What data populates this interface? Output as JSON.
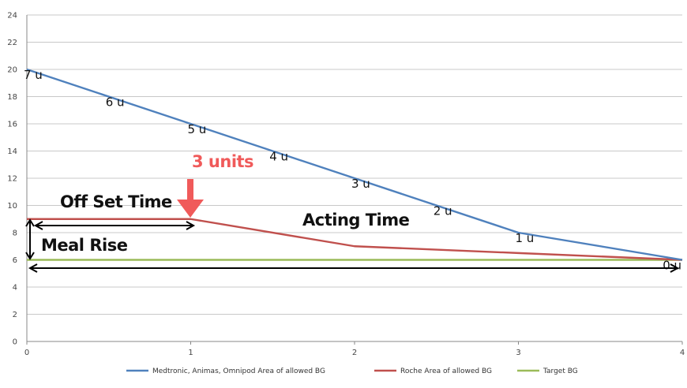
{
  "chart_data": {
    "type": "line",
    "title": "",
    "xlabel": "",
    "ylabel": "",
    "xlim": [
      0,
      4
    ],
    "ylim": [
      0,
      24
    ],
    "x_ticks": [
      "0",
      "1",
      "2",
      "3",
      "4"
    ],
    "y_ticks": [
      "0",
      "2",
      "4",
      "6",
      "8",
      "10",
      "12",
      "14",
      "16",
      "18",
      "20",
      "22",
      "24"
    ],
    "grid": "horizontal",
    "legend_position": "bottom",
    "series": [
      {
        "name": "Medtronic, Animas, Omnipod Area of allowed BG",
        "color": "#4f81bd",
        "x": [
          0,
          1,
          2,
          3,
          4
        ],
        "y": [
          20,
          16,
          12,
          8,
          6
        ]
      },
      {
        "name": "Roche Area of allowed BG",
        "color": "#c0504d",
        "x": [
          0,
          1,
          2,
          3,
          4
        ],
        "y": [
          9,
          9,
          7,
          6.5,
          6
        ]
      },
      {
        "name": "Target BG",
        "color": "#9bbb59",
        "x": [
          0,
          1,
          2,
          3,
          4
        ],
        "y": [
          6,
          6,
          6,
          6,
          6
        ]
      }
    ],
    "point_labels": [
      {
        "text": "7 u",
        "x": 0.0,
        "y": 19.6
      },
      {
        "text": "6 u",
        "x": 0.5,
        "y": 17.6
      },
      {
        "text": "5 u",
        "x": 1.0,
        "y": 15.6
      },
      {
        "text": "4 u",
        "x": 1.5,
        "y": 13.6
      },
      {
        "text": "3 u",
        "x": 2.0,
        "y": 11.6
      },
      {
        "text": "2 u",
        "x": 2.5,
        "y": 9.6
      },
      {
        "text": "1 u",
        "x": 3.0,
        "y": 7.6
      },
      {
        "text": "0 u",
        "x": 3.9,
        "y": 5.6
      }
    ],
    "annotations": {
      "three_units": "3 units",
      "three_units_color": "#f05a5a",
      "offset_time": "Off Set Time",
      "acting_time": "Acting Time",
      "meal_rise": "Meal Rise"
    }
  }
}
